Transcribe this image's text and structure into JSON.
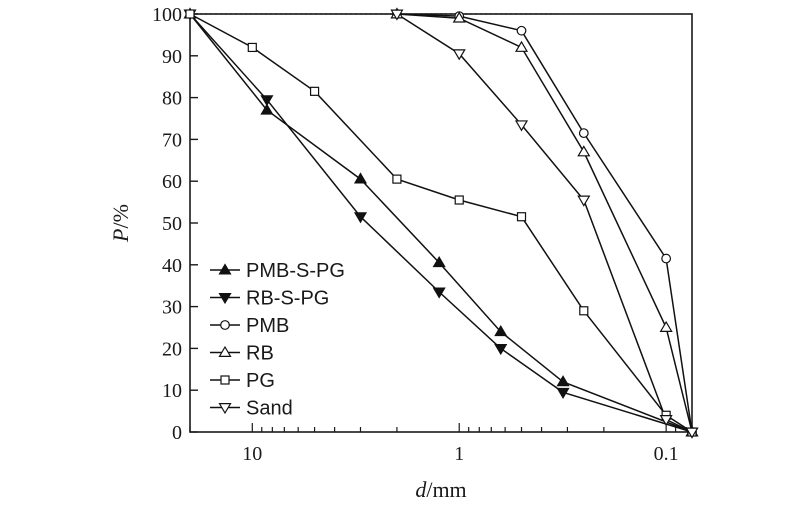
{
  "chart_data": {
    "type": "line",
    "title": "",
    "xlabel_var": "d",
    "xlabel_unit": "/mm",
    "ylabel_var": "P",
    "ylabel_unit": "/%",
    "x_scale": "log",
    "x_reversed": true,
    "xlim": [
      20,
      0.075
    ],
    "ylim": [
      0,
      100
    ],
    "x_ticks": [
      {
        "value": 10,
        "label": "10"
      },
      {
        "value": 1,
        "label": "1"
      },
      {
        "value": 0.1,
        "label": "0.1"
      }
    ],
    "y_ticks": [
      0,
      10,
      20,
      30,
      40,
      50,
      60,
      70,
      80,
      90,
      100
    ],
    "grid": false,
    "reference_line": {
      "y": 100,
      "style": "dotted"
    },
    "legend_position": "bottom-left",
    "series": [
      {
        "name": "PMB-S-PG",
        "marker": "triangle-up-filled",
        "x": [
          20,
          8.5,
          3,
          1.25,
          0.63,
          0.315,
          0.075
        ],
        "y": [
          100,
          77,
          60.5,
          40.5,
          24,
          12,
          0
        ]
      },
      {
        "name": "RB-S-PG",
        "marker": "triangle-down-filled",
        "x": [
          20,
          8.5,
          3,
          1.25,
          0.63,
          0.315,
          0.075
        ],
        "y": [
          100,
          79.5,
          51.5,
          33.5,
          20,
          9.5,
          0
        ]
      },
      {
        "name": "PMB",
        "marker": "circle-open",
        "x": [
          2,
          1,
          0.5,
          0.25,
          0.1,
          0.075
        ],
        "y": [
          100,
          99.5,
          96,
          71.5,
          41.5,
          0
        ]
      },
      {
        "name": "RB",
        "marker": "triangle-up-open",
        "x": [
          2,
          1,
          0.5,
          0.25,
          0.1,
          0.075
        ],
        "y": [
          100,
          99,
          92,
          67,
          25,
          0
        ]
      },
      {
        "name": "PG",
        "marker": "square-open",
        "x": [
          20,
          10,
          5,
          2,
          1,
          0.5,
          0.25,
          0.1,
          0.075
        ],
        "y": [
          100,
          92,
          81.5,
          60.5,
          55.5,
          51.5,
          29,
          4,
          0
        ]
      },
      {
        "name": "Sand",
        "marker": "triangle-down-open",
        "x": [
          2,
          1,
          0.5,
          0.25,
          0.1,
          0.075
        ],
        "y": [
          100,
          90.5,
          73.5,
          55.5,
          3,
          0
        ]
      }
    ]
  }
}
